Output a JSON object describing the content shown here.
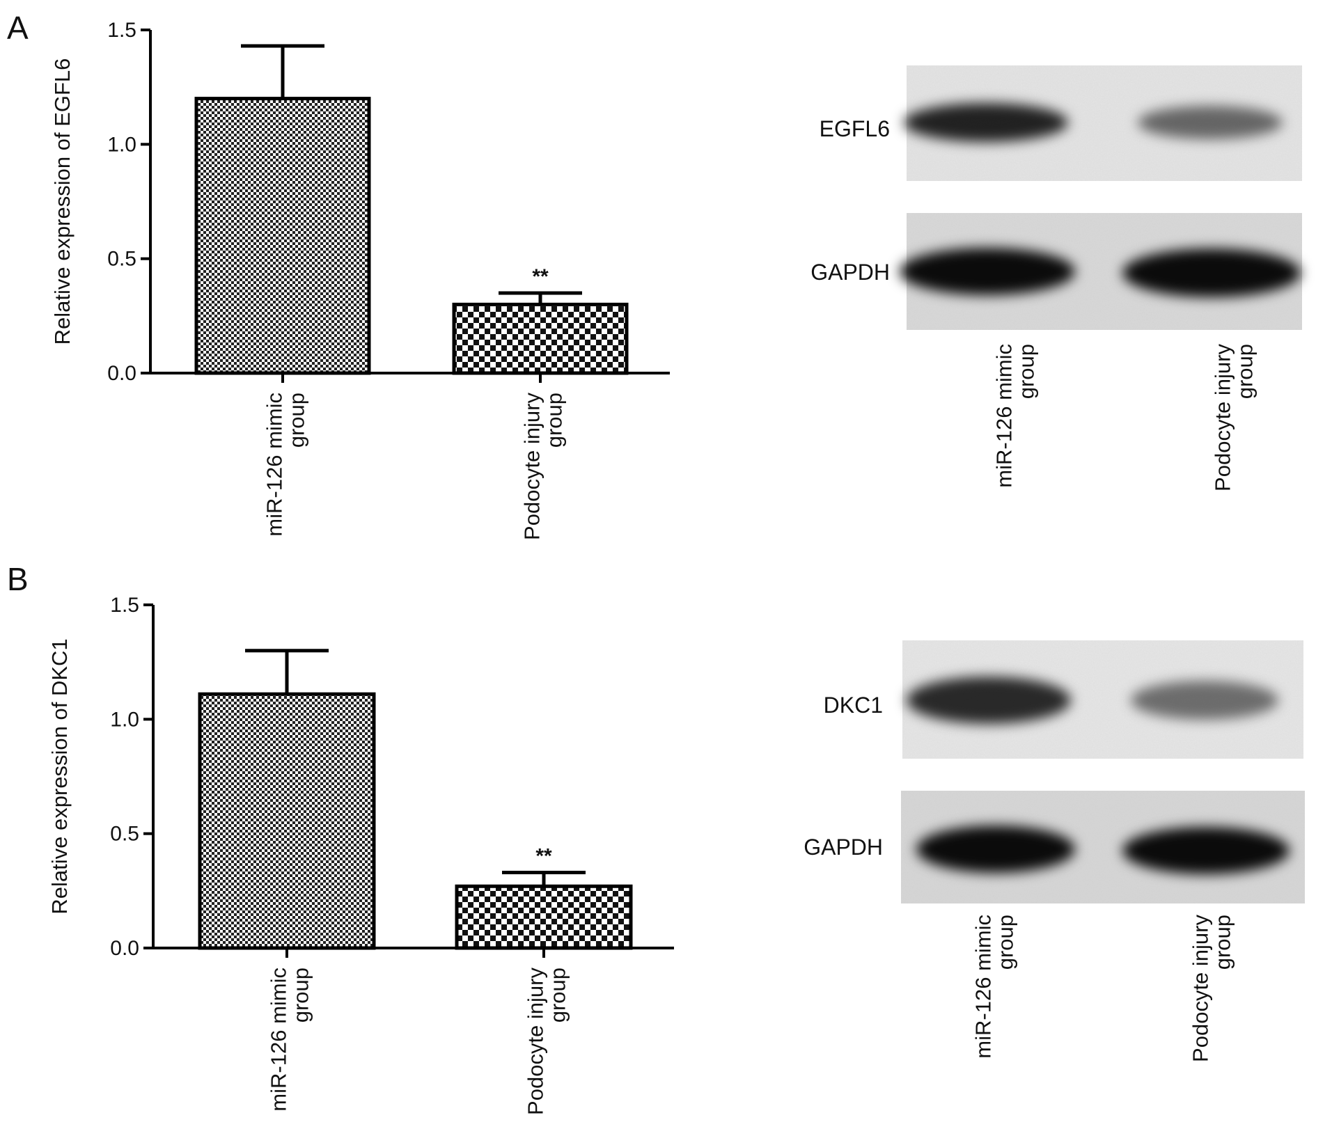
{
  "panels": [
    {
      "letter": "A",
      "target_label": "EGFL6",
      "control_label": "GAPDH"
    },
    {
      "letter": "B",
      "target_label": "DKC1",
      "control_label": "GAPDH"
    }
  ],
  "blot_lanes": [
    [
      "miR-126 mimic",
      "group"
    ],
    [
      "Podocyte injury",
      "group"
    ]
  ],
  "band_intensity": {
    "EGFL6": [
      0.85,
      0.55
    ],
    "GAPDH_A": [
      0.95,
      0.95
    ],
    "DKC1": [
      0.82,
      0.52
    ],
    "GAPDH_B": [
      0.95,
      0.95
    ]
  },
  "chart_data": [
    {
      "type": "bar",
      "panel": "A",
      "categories": [
        [
          "miR-126 mimic",
          "group"
        ],
        [
          "Podocyte injury",
          "group"
        ]
      ],
      "values": [
        1.2,
        0.3
      ],
      "errors": [
        0.23,
        0.05
      ],
      "significance": [
        "",
        "**"
      ],
      "ylabel": "Relative expression of EGFL6",
      "xlabel": "",
      "ylim": [
        0,
        1.5
      ],
      "yticks": [
        "0.0",
        "0.5",
        "1.0",
        "1.5"
      ],
      "fill_patterns": [
        "fine-checker",
        "coarse-checker"
      ],
      "colors": {
        "bar_outline": "#000000",
        "axis": "#000000"
      }
    },
    {
      "type": "bar",
      "panel": "B",
      "categories": [
        [
          "miR-126 mimic",
          "group"
        ],
        [
          "Podocyte injury",
          "group"
        ]
      ],
      "values": [
        1.11,
        0.27
      ],
      "errors": [
        0.19,
        0.06
      ],
      "significance": [
        "",
        "**"
      ],
      "ylabel": "Relative expression of DKC1",
      "xlabel": "",
      "ylim": [
        0,
        1.5
      ],
      "yticks": [
        "0.0",
        "0.5",
        "1.0",
        "1.5"
      ],
      "fill_patterns": [
        "fine-checker",
        "coarse-checker"
      ],
      "colors": {
        "bar_outline": "#000000",
        "axis": "#000000"
      }
    }
  ]
}
